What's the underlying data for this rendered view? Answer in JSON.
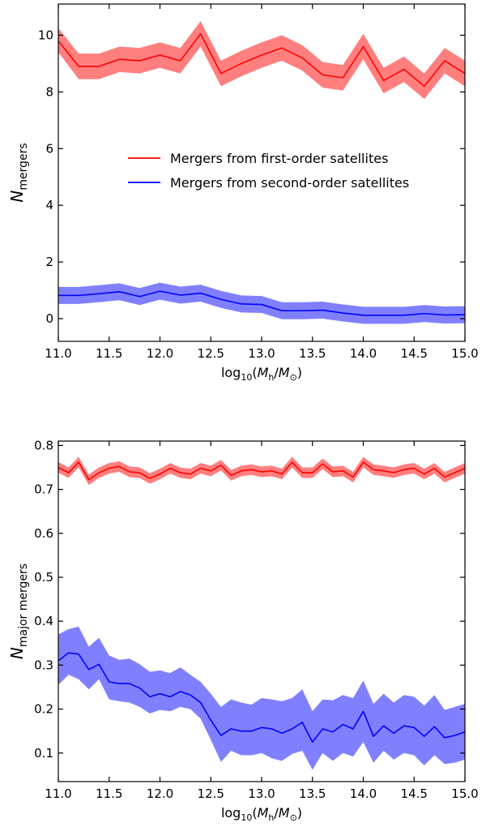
{
  "chart_data": [
    {
      "type": "line",
      "title": "",
      "xlabel": "log10(Mh/M⊙)",
      "ylabel": "Nmergers",
      "xlim": [
        11.0,
        15.0
      ],
      "ylim": [
        -0.8,
        11.1
      ],
      "xticks": [
        "11.0",
        "11.5",
        "12.0",
        "12.5",
        "13.0",
        "13.5",
        "14.0",
        "14.5",
        "15.0"
      ],
      "yticks": [
        "0",
        "2",
        "4",
        "6",
        "8",
        "10"
      ],
      "legend_position": "center",
      "grid": false,
      "x": [
        11.0,
        11.2,
        11.4,
        11.6,
        11.8,
        12.0,
        12.2,
        12.4,
        12.6,
        12.8,
        13.0,
        13.2,
        13.4,
        13.6,
        13.8,
        14.0,
        14.2,
        14.4,
        14.6,
        14.8,
        15.0
      ],
      "series": [
        {
          "name": "Mergers from first-order satellites",
          "color": "#ff0000",
          "band_color": "#ff7f7f",
          "values": [
            9.8,
            8.9,
            8.9,
            9.15,
            9.1,
            9.3,
            9.1,
            10.05,
            8.65,
            9.0,
            9.3,
            9.55,
            9.2,
            8.6,
            8.5,
            9.6,
            8.4,
            8.8,
            8.2,
            9.1,
            8.65
          ],
          "lower": [
            9.4,
            8.45,
            8.45,
            8.7,
            8.65,
            8.85,
            8.65,
            9.6,
            8.2,
            8.55,
            8.85,
            9.1,
            8.75,
            8.15,
            8.05,
            9.15,
            7.95,
            8.35,
            7.75,
            8.65,
            8.2
          ],
          "upper": [
            10.25,
            9.35,
            9.35,
            9.6,
            9.55,
            9.75,
            9.55,
            10.5,
            9.1,
            9.45,
            9.75,
            10.0,
            9.65,
            9.05,
            8.95,
            10.05,
            8.85,
            9.25,
            8.65,
            9.55,
            9.1
          ]
        },
        {
          "name": "Mergers from second-order satellites",
          "color": "#0000ff",
          "band_color": "#8080ff",
          "values": [
            0.82,
            0.82,
            0.88,
            0.95,
            0.78,
            0.97,
            0.83,
            0.9,
            0.68,
            0.52,
            0.5,
            0.28,
            0.28,
            0.3,
            0.2,
            0.12,
            0.12,
            0.12,
            0.18,
            0.13,
            0.14
          ],
          "lower": [
            0.52,
            0.52,
            0.58,
            0.65,
            0.48,
            0.67,
            0.53,
            0.6,
            0.38,
            0.22,
            0.2,
            -0.02,
            -0.02,
            0.0,
            -0.1,
            -0.18,
            -0.18,
            -0.18,
            -0.12,
            -0.17,
            -0.16
          ],
          "upper": [
            1.12,
            1.12,
            1.18,
            1.25,
            1.08,
            1.27,
            1.13,
            1.2,
            0.98,
            0.82,
            0.8,
            0.58,
            0.58,
            0.6,
            0.5,
            0.42,
            0.42,
            0.42,
            0.48,
            0.43,
            0.44
          ]
        }
      ]
    },
    {
      "type": "line",
      "title": "",
      "xlabel": "log10(Mh/M⊙)",
      "ylabel": "Nmajor mergers",
      "xlim": [
        11.0,
        15.0
      ],
      "ylim": [
        0.035,
        0.81
      ],
      "xticks": [
        "11.0",
        "11.5",
        "12.0",
        "12.5",
        "13.0",
        "13.5",
        "14.0",
        "14.5",
        "15.0"
      ],
      "yticks": [
        "0.1",
        "0.2",
        "0.3",
        "0.4",
        "0.5",
        "0.6",
        "0.7",
        "0.8"
      ],
      "grid": false,
      "x": [
        11.0,
        11.1,
        11.2,
        11.3,
        11.4,
        11.5,
        11.6,
        11.7,
        11.8,
        11.9,
        12.0,
        12.1,
        12.2,
        12.3,
        12.4,
        12.5,
        12.6,
        12.7,
        12.8,
        12.9,
        13.0,
        13.1,
        13.2,
        13.3,
        13.4,
        13.5,
        13.6,
        13.7,
        13.8,
        13.9,
        14.0,
        14.1,
        14.2,
        14.3,
        14.4,
        14.5,
        14.6,
        14.7,
        14.8,
        14.9,
        15.0
      ],
      "series": [
        {
          "name": "",
          "color": "#ff0000",
          "band_color": "#ff7f7f",
          "values": [
            0.75,
            0.738,
            0.762,
            0.722,
            0.738,
            0.748,
            0.752,
            0.74,
            0.738,
            0.725,
            0.735,
            0.748,
            0.738,
            0.735,
            0.748,
            0.742,
            0.755,
            0.732,
            0.742,
            0.745,
            0.74,
            0.742,
            0.735,
            0.762,
            0.738,
            0.738,
            0.758,
            0.74,
            0.742,
            0.728,
            0.762,
            0.745,
            0.742,
            0.738,
            0.745,
            0.748,
            0.735,
            0.748,
            0.728,
            0.738,
            0.748
          ],
          "lower": [
            0.738,
            0.726,
            0.75,
            0.71,
            0.726,
            0.736,
            0.74,
            0.728,
            0.726,
            0.713,
            0.723,
            0.736,
            0.726,
            0.723,
            0.736,
            0.73,
            0.743,
            0.72,
            0.73,
            0.733,
            0.728,
            0.73,
            0.723,
            0.75,
            0.726,
            0.726,
            0.746,
            0.728,
            0.73,
            0.716,
            0.75,
            0.733,
            0.73,
            0.726,
            0.733,
            0.736,
            0.723,
            0.736,
            0.716,
            0.726,
            0.736
          ],
          "upper": [
            0.762,
            0.75,
            0.774,
            0.734,
            0.75,
            0.76,
            0.764,
            0.752,
            0.75,
            0.737,
            0.747,
            0.76,
            0.75,
            0.747,
            0.76,
            0.754,
            0.767,
            0.744,
            0.754,
            0.757,
            0.752,
            0.754,
            0.747,
            0.774,
            0.75,
            0.75,
            0.77,
            0.752,
            0.754,
            0.74,
            0.774,
            0.757,
            0.754,
            0.75,
            0.757,
            0.76,
            0.747,
            0.76,
            0.74,
            0.75,
            0.76
          ]
        },
        {
          "name": "",
          "color": "#0000ff",
          "band_color": "#8080ff",
          "values": [
            0.31,
            0.328,
            0.325,
            0.29,
            0.302,
            0.262,
            0.258,
            0.258,
            0.248,
            0.228,
            0.235,
            0.228,
            0.24,
            0.232,
            0.215,
            0.175,
            0.14,
            0.155,
            0.15,
            0.15,
            0.158,
            0.155,
            0.145,
            0.155,
            0.17,
            0.125,
            0.155,
            0.148,
            0.165,
            0.155,
            0.195,
            0.138,
            0.162,
            0.145,
            0.162,
            0.158,
            0.138,
            0.16,
            0.135,
            0.14,
            0.148
          ],
          "lower": [
            0.255,
            0.278,
            0.268,
            0.245,
            0.268,
            0.222,
            0.218,
            0.215,
            0.205,
            0.19,
            0.198,
            0.195,
            0.205,
            0.2,
            0.178,
            0.13,
            0.08,
            0.105,
            0.095,
            0.095,
            0.1,
            0.088,
            0.082,
            0.098,
            0.105,
            0.062,
            0.1,
            0.082,
            0.1,
            0.092,
            0.125,
            0.078,
            0.105,
            0.085,
            0.1,
            0.095,
            0.072,
            0.095,
            0.075,
            0.078,
            0.085
          ],
          "upper": [
            0.37,
            0.382,
            0.388,
            0.342,
            0.362,
            0.322,
            0.312,
            0.315,
            0.302,
            0.285,
            0.288,
            0.282,
            0.295,
            0.278,
            0.262,
            0.235,
            0.205,
            0.222,
            0.215,
            0.21,
            0.225,
            0.222,
            0.218,
            0.225,
            0.245,
            0.195,
            0.222,
            0.22,
            0.232,
            0.225,
            0.265,
            0.212,
            0.235,
            0.215,
            0.232,
            0.228,
            0.208,
            0.232,
            0.198,
            0.205,
            0.212
          ]
        }
      ]
    }
  ]
}
